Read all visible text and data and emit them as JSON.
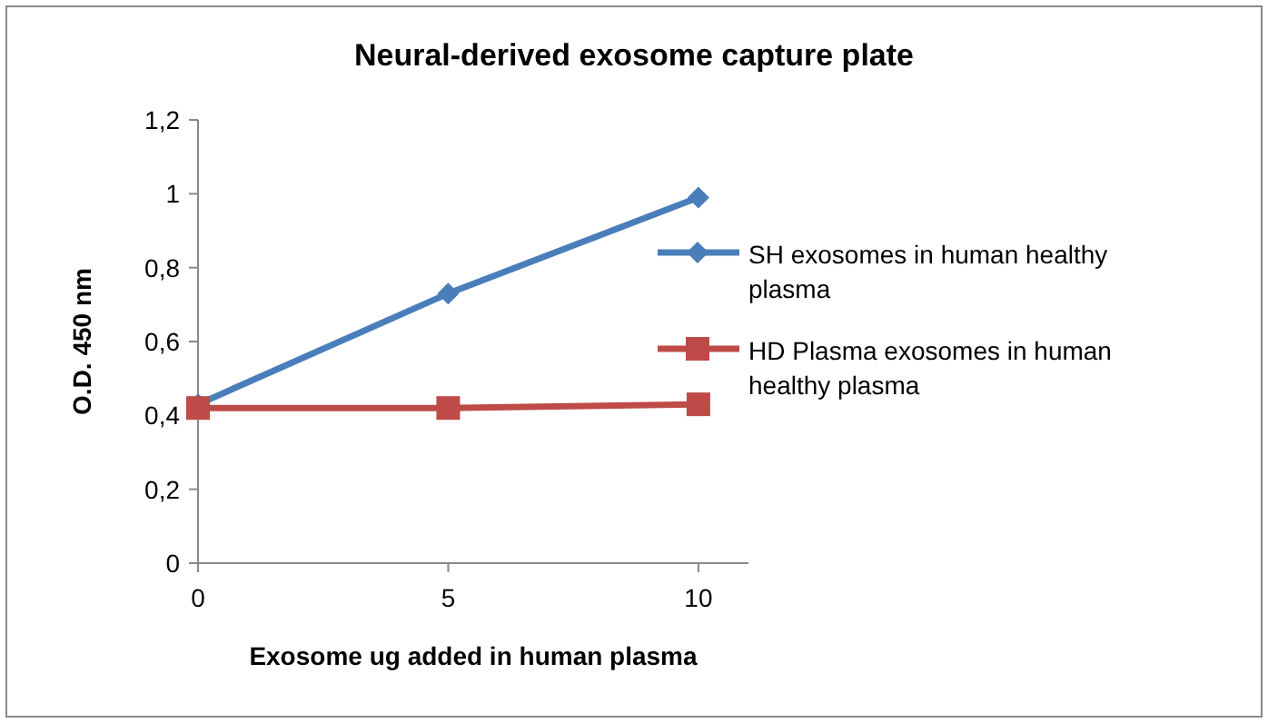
{
  "chart_data": {
    "type": "line",
    "title": "Neural-derived exosome capture plate",
    "xlabel": "Exosome ug added in human plasma",
    "ylabel": "O.D. 450 nm",
    "x": [
      0,
      5,
      10
    ],
    "series": [
      {
        "name": "SH exosomes in human healthy plasma",
        "color": "#4a7ebb",
        "values": [
          0.43,
          0.73,
          0.99
        ],
        "marker": "diamond"
      },
      {
        "name": "HD Plasma exosomes in human healthy plasma",
        "color": "#be4b48",
        "values": [
          0.42,
          0.42,
          0.43
        ],
        "marker": "square"
      }
    ],
    "xlim": [
      0,
      11
    ],
    "xticks": [
      0,
      5,
      10
    ],
    "ylim": [
      0,
      1.2
    ],
    "yticks": [
      0,
      {
        "value": 0.2,
        "label": "0,2"
      },
      {
        "value": 0.4,
        "label": "0,4"
      },
      {
        "value": 0.6,
        "label": "0,6"
      },
      {
        "value": 0.8,
        "label": "0,8"
      },
      1,
      {
        "value": 1.2,
        "label": "1,2"
      }
    ],
    "grid": false,
    "legend": "right"
  }
}
